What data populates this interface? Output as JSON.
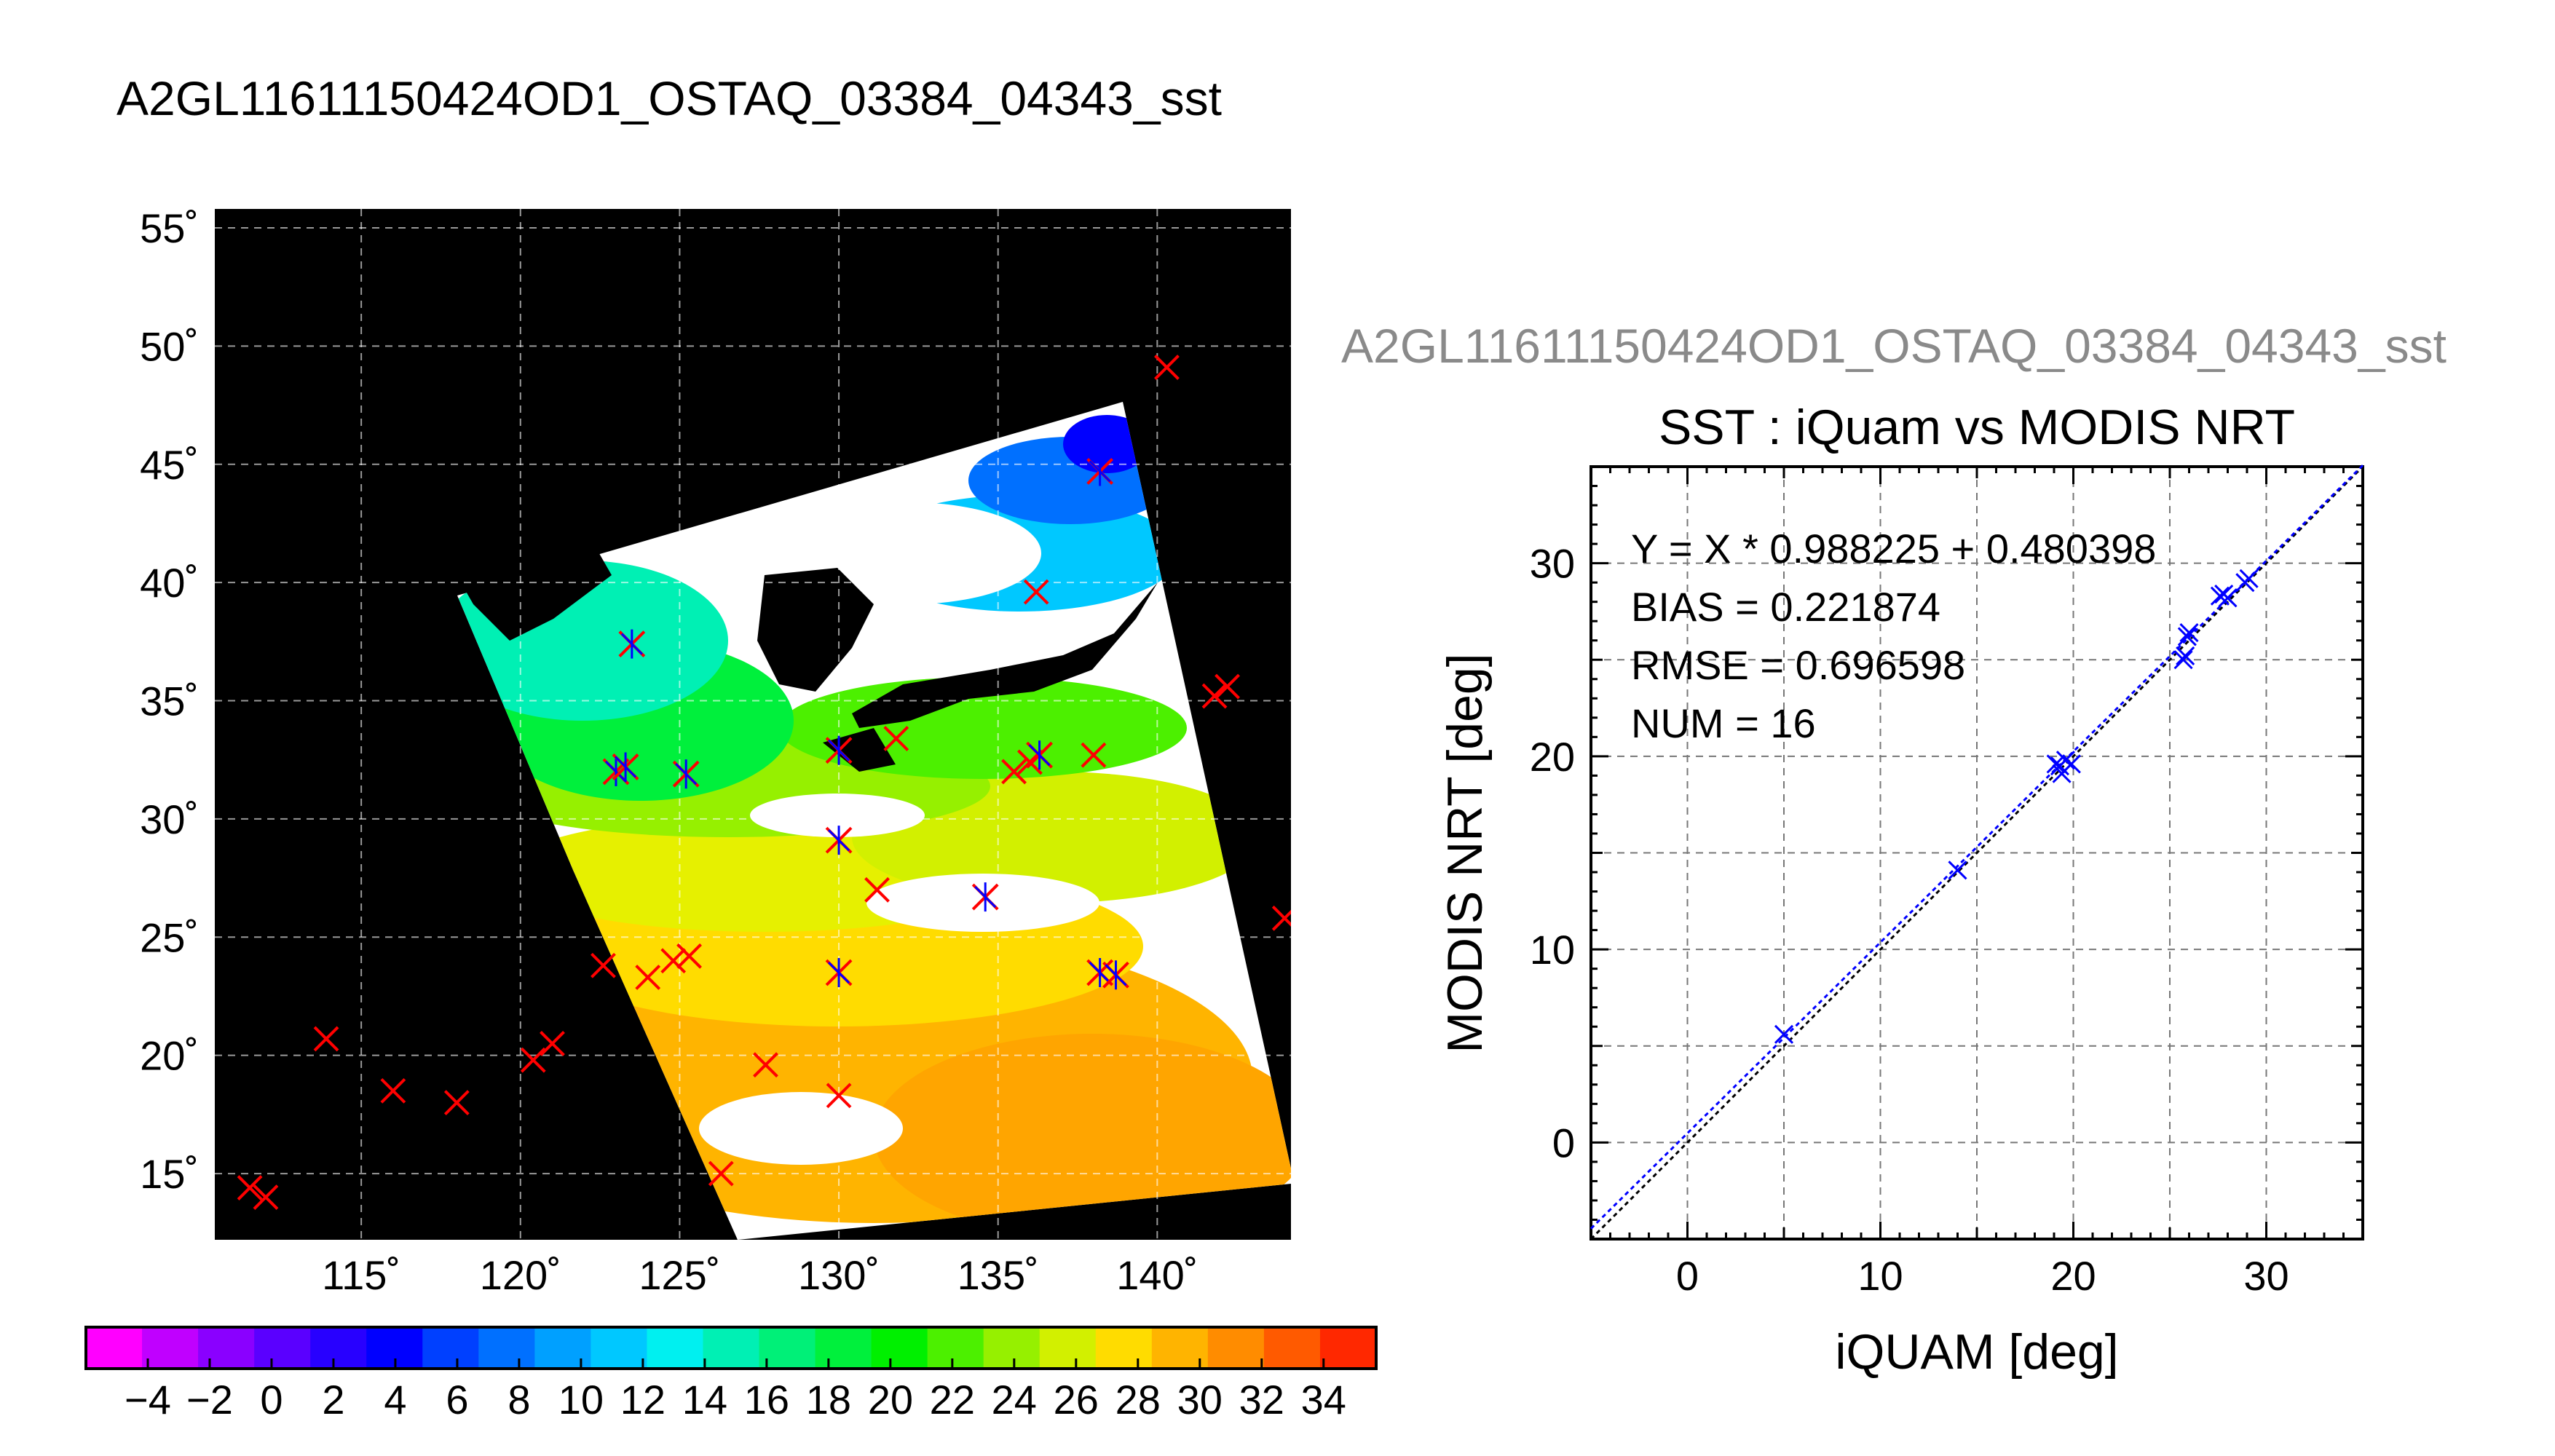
{
  "page_title": "A2GL11611150424OD1_OSTAQ_03384_04343_sst",
  "chart_data": [
    {
      "type": "heatmap",
      "title": "A2GL11611150424OD1_OSTAQ_03384_04343_sst",
      "x_ticks": [
        115,
        120,
        125,
        130,
        135,
        140
      ],
      "y_ticks": [
        15,
        20,
        25,
        30,
        35,
        40,
        45,
        50,
        55
      ],
      "x_tick_labels": [
        "115˚",
        "120˚",
        "125˚",
        "130˚",
        "135˚",
        "140˚"
      ],
      "y_tick_labels": [
        "15˚",
        "20˚",
        "25˚",
        "30˚",
        "35˚",
        "40˚",
        "45˚",
        "50˚",
        "55˚"
      ],
      "xlim": [
        110.4,
        144.2
      ],
      "ylim": [
        12.2,
        55.8
      ],
      "grid": true,
      "colorbar": {
        "range": [
          -5,
          35
        ],
        "step": 2,
        "tick_values": [
          -4,
          -2,
          0,
          2,
          4,
          6,
          8,
          10,
          12,
          14,
          16,
          18,
          20,
          22,
          24,
          26,
          28,
          30,
          32,
          34
        ],
        "tick_labels": [
          "−4",
          "−2",
          "0",
          "2",
          "4",
          "6",
          "8",
          "10",
          "12",
          "14",
          "16",
          "18",
          "20",
          "22",
          "24",
          "26",
          "28",
          "30",
          "32",
          "34"
        ],
        "colors": [
          "#ff00ff",
          "#c000ff",
          "#8a00ff",
          "#5a00ff",
          "#2800ff",
          "#0000ff",
          "#0040ff",
          "#0070ff",
          "#00a0ff",
          "#00c8ff",
          "#00f0f0",
          "#00f0b4",
          "#00f078",
          "#00f03c",
          "#00f000",
          "#4cf000",
          "#96f000",
          "#d2f000",
          "#ffdc00",
          "#ffb400",
          "#ff8c00",
          "#ff5a00",
          "#ff2800"
        ]
      },
      "points": [
        {
          "lon": 111.5,
          "lat": 14.4,
          "matched": false
        },
        {
          "lon": 112.0,
          "lat": 14.0,
          "matched": false
        },
        {
          "lon": 113.9,
          "lat": 20.7,
          "matched": false
        },
        {
          "lon": 116.0,
          "lat": 18.5,
          "matched": false
        },
        {
          "lon": 118.0,
          "lat": 18.0,
          "matched": false
        },
        {
          "lon": 120.4,
          "lat": 19.8,
          "matched": false
        },
        {
          "lon": 121.0,
          "lat": 20.5,
          "matched": false
        },
        {
          "lon": 122.6,
          "lat": 23.8,
          "matched": false
        },
        {
          "lon": 124.0,
          "lat": 23.3,
          "matched": false
        },
        {
          "lon": 124.8,
          "lat": 24.0,
          "matched": false
        },
        {
          "lon": 125.3,
          "lat": 24.2,
          "matched": false
        },
        {
          "lon": 126.3,
          "lat": 15.0,
          "matched": false
        },
        {
          "lon": 127.7,
          "lat": 19.6,
          "matched": false
        },
        {
          "lon": 130.0,
          "lat": 18.3,
          "matched": false
        },
        {
          "lon": 131.2,
          "lat": 27.0,
          "matched": false
        },
        {
          "lon": 131.8,
          "lat": 33.4,
          "matched": false
        },
        {
          "lon": 135.5,
          "lat": 32.0,
          "matched": false
        },
        {
          "lon": 136.0,
          "lat": 32.4,
          "matched": false
        },
        {
          "lon": 136.2,
          "lat": 39.6,
          "matched": false
        },
        {
          "lon": 138.0,
          "lat": 32.7,
          "matched": false
        },
        {
          "lon": 140.3,
          "lat": 49.1,
          "matched": false
        },
        {
          "lon": 141.8,
          "lat": 35.2,
          "matched": false
        },
        {
          "lon": 142.2,
          "lat": 35.6,
          "matched": false
        },
        {
          "lon": 144.0,
          "lat": 25.8,
          "matched": false
        },
        {
          "lon": 123.5,
          "lat": 37.4,
          "matched": true
        },
        {
          "lon": 123.0,
          "lat": 32.0,
          "matched": true
        },
        {
          "lon": 123.3,
          "lat": 32.2,
          "matched": true
        },
        {
          "lon": 125.2,
          "lat": 31.9,
          "matched": true
        },
        {
          "lon": 130.0,
          "lat": 32.9,
          "matched": true
        },
        {
          "lon": 130.0,
          "lat": 29.1,
          "matched": true
        },
        {
          "lon": 130.0,
          "lat": 23.5,
          "matched": true
        },
        {
          "lon": 134.6,
          "lat": 26.7,
          "matched": true
        },
        {
          "lon": 136.3,
          "lat": 32.7,
          "matched": true
        },
        {
          "lon": 138.2,
          "lat": 23.5,
          "matched": true
        },
        {
          "lon": 138.7,
          "lat": 23.4,
          "matched": true
        },
        {
          "lon": 138.2,
          "lat": 44.7,
          "matched": true
        }
      ]
    },
    {
      "type": "scatter",
      "source_title": "A2GL11611150424OD1_OSTAQ_03384_04343_sst",
      "title": "SST : iQuam vs MODIS NRT",
      "xlabel": "iQUAM [deg]",
      "ylabel": "MODIS NRT [deg]",
      "xlim": [
        -5,
        35
      ],
      "ylim": [
        -5,
        35
      ],
      "x_ticks": [
        0,
        10,
        20,
        30
      ],
      "y_ticks": [
        0,
        10,
        20,
        30
      ],
      "grid": true,
      "stats": [
        "Y = X * 0.988225 + 0.480398",
        "BIAS = 0.221874",
        "RMSE = 0.696598",
        "NUM = 16"
      ],
      "fit": {
        "slope": 0.988225,
        "intercept": 0.480398
      },
      "x": [
        5.0,
        14.0,
        19.1,
        19.4,
        19.6,
        19.9,
        25.7,
        25.9,
        26.0,
        27.6,
        27.8,
        28.0,
        28.9,
        29.1,
        19.3,
        25.8
      ],
      "y": [
        5.6,
        14.1,
        19.6,
        19.1,
        19.8,
        19.6,
        25.0,
        26.2,
        26.4,
        28.3,
        28.4,
        28.2,
        29.0,
        29.2,
        19.5,
        25.2
      ]
    }
  ],
  "colors": {
    "unmatched": "#ff0000",
    "matched": "#0000ff",
    "land": "#000000",
    "cloud": "#ffffff"
  }
}
